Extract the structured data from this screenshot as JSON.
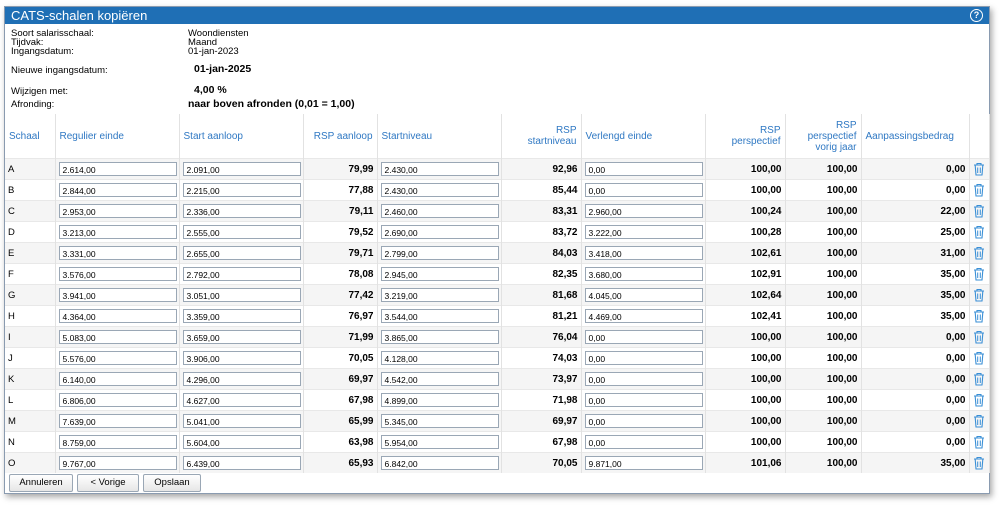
{
  "window": {
    "title": "CATS-schalen kopiëren",
    "help_glyph": "?"
  },
  "info": {
    "soort_label": "Soort salarisschaal:",
    "soort_value": "Woondiensten",
    "tijdvak_label": "Tijdvak:",
    "tijdvak_value": "Maand",
    "ingang_label": "Ingangsdatum:",
    "ingang_value": "01-jan-2023",
    "nieuwe_label": "Nieuwe ingangsdatum:",
    "nieuwe_value": "01-jan-2025",
    "wijzigen_label": "Wijzigen met:",
    "wijzigen_value": "4,00 %",
    "afronding_label": "Afronding:",
    "afronding_value": "naar boven afronden (0,01 = 1,00)"
  },
  "table": {
    "headers": {
      "schaal": "Schaal",
      "regulier": "Regulier einde",
      "start_aanloop": "Start aanloop",
      "rsp_aanloop": "RSP aanloop",
      "startniveau": "Startniveau",
      "rsp_start_1": "RSP",
      "rsp_start_2": "startniveau",
      "verlengd": "Verlengd einde",
      "rsp_persp_1": "RSP",
      "rsp_persp_2": "perspectief",
      "rsp_vorig_1": "RSP",
      "rsp_vorig_2": "perspectief",
      "rsp_vorig_3": "vorig jaar",
      "aanpassing": "Aanpassingsbedrag"
    },
    "rows": [
      {
        "schaal": "A",
        "regulier": "2.614,00",
        "start": "2.091,00",
        "rsp_aanloop": "79,99",
        "startniveau": "2.430,00",
        "rsp_start": "92,96",
        "verlengd": "0,00",
        "rsp_persp": "100,00",
        "rsp_vorig": "100,00",
        "aanpassing": "0,00"
      },
      {
        "schaal": "B",
        "regulier": "2.844,00",
        "start": "2.215,00",
        "rsp_aanloop": "77,88",
        "startniveau": "2.430,00",
        "rsp_start": "85,44",
        "verlengd": "0,00",
        "rsp_persp": "100,00",
        "rsp_vorig": "100,00",
        "aanpassing": "0,00"
      },
      {
        "schaal": "C",
        "regulier": "2.953,00",
        "start": "2.336,00",
        "rsp_aanloop": "79,11",
        "startniveau": "2.460,00",
        "rsp_start": "83,31",
        "verlengd": "2.960,00",
        "rsp_persp": "100,24",
        "rsp_vorig": "100,00",
        "aanpassing": "22,00"
      },
      {
        "schaal": "D",
        "regulier": "3.213,00",
        "start": "2.555,00",
        "rsp_aanloop": "79,52",
        "startniveau": "2.690,00",
        "rsp_start": "83,72",
        "verlengd": "3.222,00",
        "rsp_persp": "100,28",
        "rsp_vorig": "100,00",
        "aanpassing": "25,00"
      },
      {
        "schaal": "E",
        "regulier": "3.331,00",
        "start": "2.655,00",
        "rsp_aanloop": "79,71",
        "startniveau": "2.799,00",
        "rsp_start": "84,03",
        "verlengd": "3.418,00",
        "rsp_persp": "102,61",
        "rsp_vorig": "100,00",
        "aanpassing": "31,00"
      },
      {
        "schaal": "F",
        "regulier": "3.576,00",
        "start": "2.792,00",
        "rsp_aanloop": "78,08",
        "startniveau": "2.945,00",
        "rsp_start": "82,35",
        "verlengd": "3.680,00",
        "rsp_persp": "102,91",
        "rsp_vorig": "100,00",
        "aanpassing": "35,00"
      },
      {
        "schaal": "G",
        "regulier": "3.941,00",
        "start": "3.051,00",
        "rsp_aanloop": "77,42",
        "startniveau": "3.219,00",
        "rsp_start": "81,68",
        "verlengd": "4.045,00",
        "rsp_persp": "102,64",
        "rsp_vorig": "100,00",
        "aanpassing": "35,00"
      },
      {
        "schaal": "H",
        "regulier": "4.364,00",
        "start": "3.359,00",
        "rsp_aanloop": "76,97",
        "startniveau": "3.544,00",
        "rsp_start": "81,21",
        "verlengd": "4.469,00",
        "rsp_persp": "102,41",
        "rsp_vorig": "100,00",
        "aanpassing": "35,00"
      },
      {
        "schaal": "I",
        "regulier": "5.083,00",
        "start": "3.659,00",
        "rsp_aanloop": "71,99",
        "startniveau": "3.865,00",
        "rsp_start": "76,04",
        "verlengd": "0,00",
        "rsp_persp": "100,00",
        "rsp_vorig": "100,00",
        "aanpassing": "0,00"
      },
      {
        "schaal": "J",
        "regulier": "5.576,00",
        "start": "3.906,00",
        "rsp_aanloop": "70,05",
        "startniveau": "4.128,00",
        "rsp_start": "74,03",
        "verlengd": "0,00",
        "rsp_persp": "100,00",
        "rsp_vorig": "100,00",
        "aanpassing": "0,00"
      },
      {
        "schaal": "K",
        "regulier": "6.140,00",
        "start": "4.296,00",
        "rsp_aanloop": "69,97",
        "startniveau": "4.542,00",
        "rsp_start": "73,97",
        "verlengd": "0,00",
        "rsp_persp": "100,00",
        "rsp_vorig": "100,00",
        "aanpassing": "0,00"
      },
      {
        "schaal": "L",
        "regulier": "6.806,00",
        "start": "4.627,00",
        "rsp_aanloop": "67,98",
        "startniveau": "4.899,00",
        "rsp_start": "71,98",
        "verlengd": "0,00",
        "rsp_persp": "100,00",
        "rsp_vorig": "100,00",
        "aanpassing": "0,00"
      },
      {
        "schaal": "M",
        "regulier": "7.639,00",
        "start": "5.041,00",
        "rsp_aanloop": "65,99",
        "startniveau": "5.345,00",
        "rsp_start": "69,97",
        "verlengd": "0,00",
        "rsp_persp": "100,00",
        "rsp_vorig": "100,00",
        "aanpassing": "0,00"
      },
      {
        "schaal": "N",
        "regulier": "8.759,00",
        "start": "5.604,00",
        "rsp_aanloop": "63,98",
        "startniveau": "5.954,00",
        "rsp_start": "67,98",
        "verlengd": "0,00",
        "rsp_persp": "100,00",
        "rsp_vorig": "100,00",
        "aanpassing": "0,00"
      },
      {
        "schaal": "O",
        "regulier": "9.767,00",
        "start": "6.439,00",
        "rsp_aanloop": "65,93",
        "startniveau": "6.842,00",
        "rsp_start": "70,05",
        "verlengd": "9.871,00",
        "rsp_persp": "101,06",
        "rsp_vorig": "100,00",
        "aanpassing": "35,00"
      }
    ],
    "row_action_icon": "trash-icon"
  },
  "footer": {
    "cancel_label": "Annuleren",
    "prev_label": "< Vorige",
    "save_label": "Opslaan"
  },
  "colors": {
    "titlebar": "#1f6fb5",
    "header_text": "#2f78c3",
    "trash": "#3a8fd6"
  }
}
